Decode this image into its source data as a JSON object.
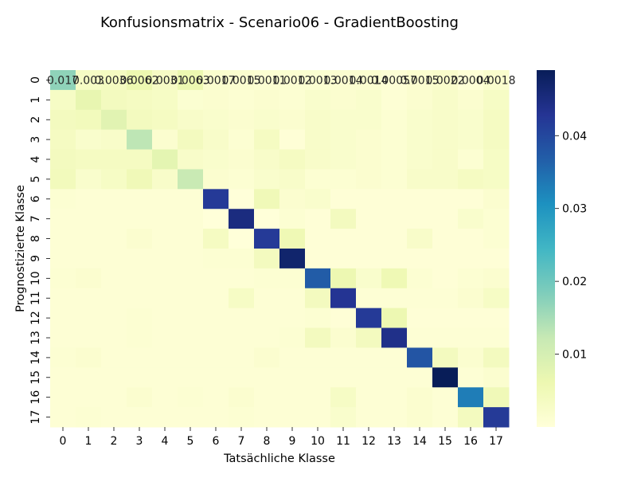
{
  "chart_data": {
    "type": "heatmap",
    "title": "Konfusionsmatrix - Scenario06 - GradientBoosting",
    "xlabel": "Tatsächliche Klasse",
    "ylabel": "Prognostizierte Klasse",
    "x_categories": [
      "0",
      "1",
      "2",
      "3",
      "4",
      "5",
      "6",
      "7",
      "8",
      "9",
      "10",
      "11",
      "12",
      "13",
      "14",
      "15",
      "16",
      "17"
    ],
    "y_categories": [
      "0",
      "1",
      "2",
      "3",
      "4",
      "5",
      "6",
      "7",
      "8",
      "9",
      "10",
      "11",
      "12",
      "13",
      "14",
      "15",
      "16",
      "17"
    ],
    "colormap": "YlGnBu",
    "color_range": [
      0.0,
      0.049
    ],
    "colorbar_ticks": [
      {
        "value": 0.01,
        "label": "0.01"
      },
      {
        "value": 0.02,
        "label": "0.02"
      },
      {
        "value": 0.03,
        "label": "0.03"
      },
      {
        "value": 0.04,
        "label": "0.04"
      }
    ],
    "annotations_row0": [
      "0.017",
      "0.003",
      "0.0036",
      "0.0062",
      "0.0031",
      "0.0063",
      "0.0017",
      "0.0015",
      "0.0011",
      "0.0012",
      "0.0013",
      "0.0014",
      "0.0014",
      "0.00057",
      "0.0015",
      "0.0022",
      "0.0004",
      "0.0018"
    ],
    "values": [
      [
        0.017,
        0.003,
        0.0036,
        0.0062,
        0.0031,
        0.0063,
        0.0017,
        0.0015,
        0.0011,
        0.0012,
        0.0013,
        0.0014,
        0.0014,
        0.0006,
        0.0015,
        0.0022,
        0.0004,
        0.0018
      ],
      [
        0.003,
        0.007,
        0.004,
        0.0035,
        0.003,
        0.0012,
        0.0015,
        0.001,
        0.0015,
        0.001,
        0.002,
        0.0015,
        0.002,
        0.0008,
        0.0015,
        0.0025,
        0.0015,
        0.003
      ],
      [
        0.004,
        0.0045,
        0.008,
        0.004,
        0.0035,
        0.0025,
        0.002,
        0.0015,
        0.002,
        0.0015,
        0.0025,
        0.002,
        0.002,
        0.001,
        0.002,
        0.0025,
        0.002,
        0.0035
      ],
      [
        0.0035,
        0.002,
        0.0025,
        0.013,
        0.0015,
        0.004,
        0.0025,
        0.001,
        0.0035,
        0.0005,
        0.0025,
        0.002,
        0.0015,
        0.001,
        0.002,
        0.0025,
        0.002,
        0.0035
      ],
      [
        0.004,
        0.0035,
        0.0035,
        0.0035,
        0.0075,
        0.0025,
        0.002,
        0.0015,
        0.0025,
        0.0035,
        0.0025,
        0.002,
        0.0015,
        0.001,
        0.002,
        0.0025,
        0.001,
        0.003
      ],
      [
        0.0045,
        0.002,
        0.003,
        0.005,
        0.0025,
        0.012,
        0.0015,
        0.001,
        0.002,
        0.0025,
        0.001,
        0.001,
        0.0015,
        0.001,
        0.0025,
        0.0025,
        0.0035,
        0.003
      ],
      [
        0.001,
        0.0008,
        0.0008,
        0.0008,
        0.0008,
        0.0008,
        0.042,
        0.0,
        0.005,
        0.0015,
        0.002,
        0.0005,
        0.0005,
        0.0005,
        0.0005,
        0.0005,
        0.0005,
        0.0015
      ],
      [
        0.0008,
        0.0008,
        0.0008,
        0.0008,
        0.0008,
        0.0008,
        0.0,
        0.045,
        0.0,
        0.001,
        0.0005,
        0.004,
        0.0005,
        0.0005,
        0.0005,
        0.0005,
        0.002,
        0.001
      ],
      [
        0.0008,
        0.0008,
        0.0008,
        0.0015,
        0.0008,
        0.0008,
        0.0035,
        0.0,
        0.042,
        0.0055,
        0.0005,
        0.0005,
        0.0005,
        0.0005,
        0.0025,
        0.0005,
        0.0005,
        0.001
      ],
      [
        0.0008,
        0.0008,
        0.0008,
        0.0008,
        0.0008,
        0.0008,
        0.001,
        0.001,
        0.004,
        0.047,
        0.0005,
        0.0005,
        0.0005,
        0.0005,
        0.0005,
        0.0005,
        0.0005,
        0.0005
      ],
      [
        0.001,
        0.0015,
        0.0008,
        0.0008,
        0.0008,
        0.0008,
        0.0008,
        0.0008,
        0.001,
        0.001,
        0.037,
        0.006,
        0.002,
        0.0055,
        0.001,
        0.0005,
        0.001,
        0.0015
      ],
      [
        0.0008,
        0.0008,
        0.0008,
        0.0008,
        0.0008,
        0.0008,
        0.0008,
        0.003,
        0.0008,
        0.0008,
        0.004,
        0.043,
        0.0008,
        0.0008,
        0.0008,
        0.0008,
        0.0015,
        0.003
      ],
      [
        0.0008,
        0.0008,
        0.0008,
        0.001,
        0.0008,
        0.0008,
        0.0008,
        0.0008,
        0.0008,
        0.0008,
        0.001,
        0.0005,
        0.042,
        0.006,
        0.0005,
        0.0005,
        0.0005,
        0.0005
      ],
      [
        0.0008,
        0.0008,
        0.0008,
        0.001,
        0.0008,
        0.0008,
        0.0008,
        0.0008,
        0.0008,
        0.001,
        0.004,
        0.0015,
        0.004,
        0.044,
        0.0008,
        0.0008,
        0.0008,
        0.0008
      ],
      [
        0.001,
        0.0015,
        0.0008,
        0.0008,
        0.0008,
        0.0008,
        0.0008,
        0.0008,
        0.0015,
        0.0008,
        0.0008,
        0.0008,
        0.0008,
        0.0008,
        0.038,
        0.004,
        0.0015,
        0.004
      ],
      [
        0.0008,
        0.0008,
        0.0008,
        0.0008,
        0.0008,
        0.0008,
        0.0008,
        0.0008,
        0.0008,
        0.0008,
        0.0008,
        0.0008,
        0.0008,
        0.0008,
        0.0008,
        0.049,
        0.0008,
        0.0015
      ],
      [
        0.0008,
        0.0008,
        0.0008,
        0.0015,
        0.0008,
        0.001,
        0.0008,
        0.0015,
        0.0008,
        0.0008,
        0.0008,
        0.003,
        0.0008,
        0.0008,
        0.0015,
        0.0008,
        0.033,
        0.005
      ],
      [
        0.0008,
        0.001,
        0.0008,
        0.0008,
        0.0008,
        0.0008,
        0.0008,
        0.001,
        0.0008,
        0.0008,
        0.0008,
        0.002,
        0.0008,
        0.0008,
        0.0015,
        0.0008,
        0.004,
        0.042
      ]
    ]
  }
}
